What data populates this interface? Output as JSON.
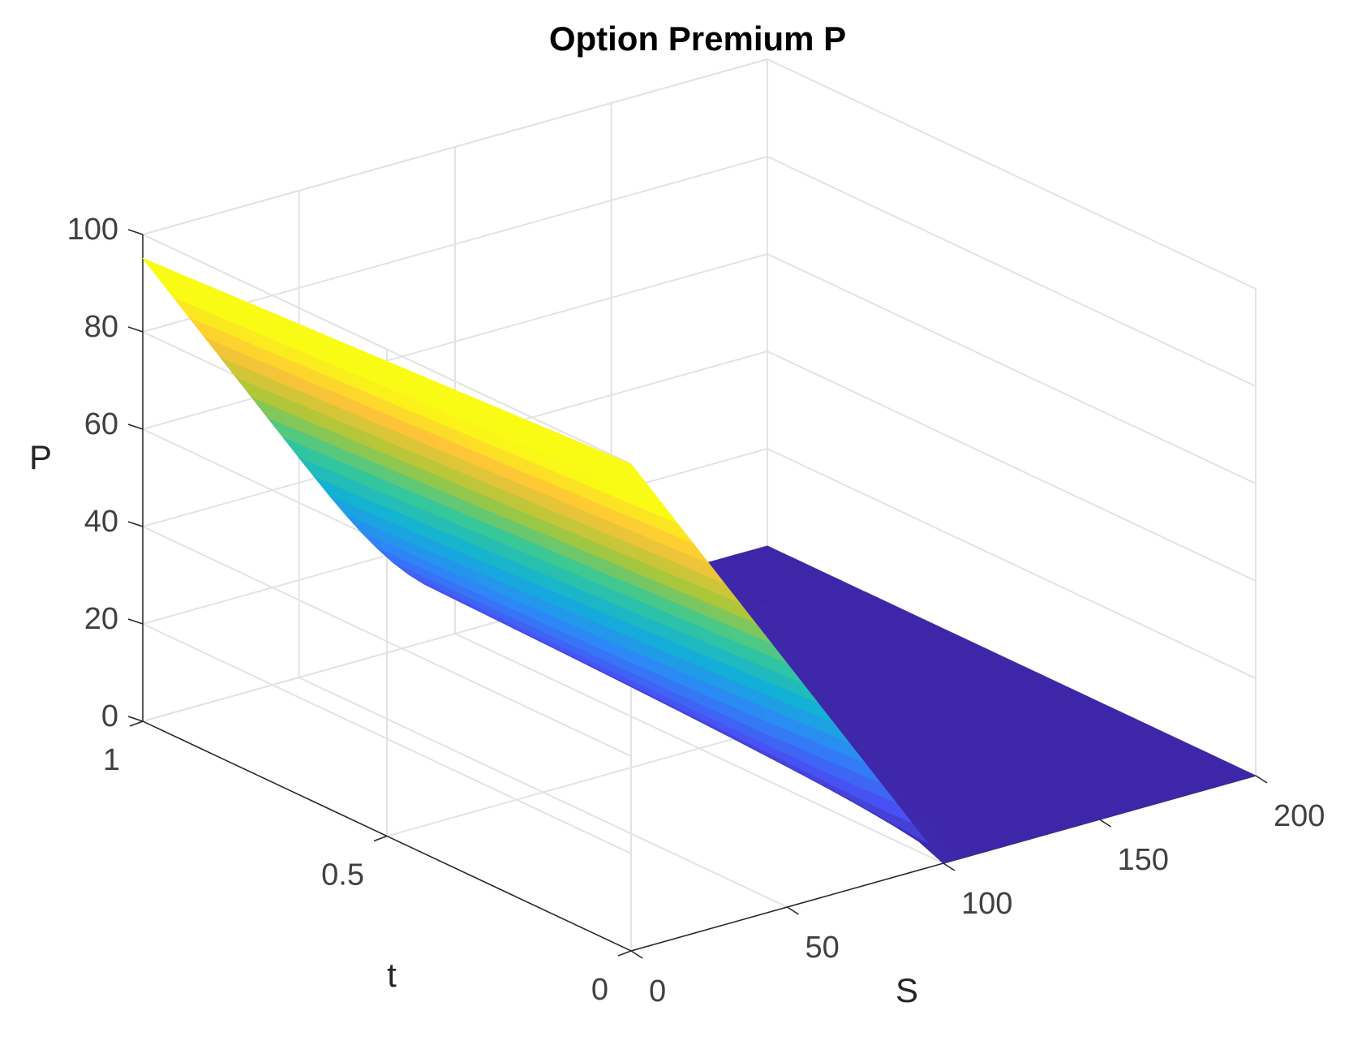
{
  "chart_data": {
    "type": "surface",
    "title": "Option Premium P",
    "xlabel": "S",
    "ylabel": "t",
    "zlabel": "P",
    "xlim": [
      0,
      200
    ],
    "ylim": [
      0,
      1
    ],
    "zlim": [
      0,
      100
    ],
    "x_ticks": [
      "0",
      "50",
      "100",
      "150",
      "200"
    ],
    "y_ticks": [
      "0",
      "0.5",
      "1"
    ],
    "z_ticks": [
      "0",
      "20",
      "40",
      "60",
      "80",
      "100"
    ],
    "grid": true,
    "colormap": "parula",
    "option": {
      "kind": "put",
      "strike": 100
    },
    "surface_samples": {
      "S": [
        0,
        25,
        50,
        75,
        100,
        125,
        150,
        175,
        200
      ],
      "t": [
        0,
        0.5,
        1
      ],
      "P": [
        [
          100,
          75,
          50,
          25,
          0,
          0,
          0,
          0,
          0
        ],
        [
          97,
          72,
          48,
          24,
          4,
          1,
          0,
          0,
          0
        ],
        [
          95,
          70,
          46,
          23,
          8,
          2,
          0,
          0,
          0
        ]
      ]
    },
    "colors": {
      "low": "#3e26a8",
      "mid": "#1fc3b0",
      "high": "#f9fb0e"
    }
  }
}
